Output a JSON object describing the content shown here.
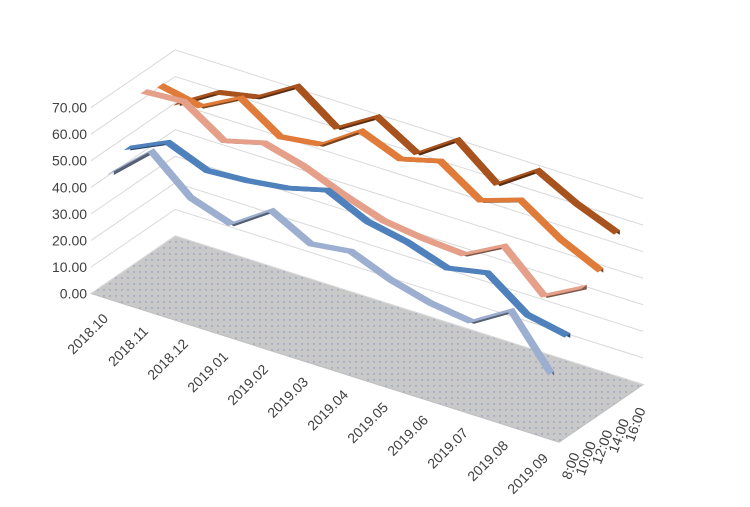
{
  "chart_data": {
    "type": "line",
    "variant": "3d-line",
    "title": "",
    "xlabel": "",
    "ylabel": "",
    "ylim": [
      0,
      70
    ],
    "yticks": [
      "0.00",
      "10.00",
      "20.00",
      "30.00",
      "40.00",
      "50.00",
      "60.00",
      "70.00"
    ],
    "categories": [
      "2018.10",
      "2018.11",
      "2018.12",
      "2019.01",
      "2019.02",
      "2019.03",
      "2019.04",
      "2019.05",
      "2019.06",
      "2019.07",
      "2019.08",
      "2019.09"
    ],
    "legend": "none",
    "grid": true,
    "series": [
      {
        "name": "8:00",
        "color": "#9dafd0",
        "values": [
          45,
          58,
          45,
          40,
          50,
          42,
          44,
          38,
          34,
          32,
          41,
          22
        ]
      },
      {
        "name": "10:00",
        "color": "#4f81bd",
        "values": [
          50,
          57,
          51,
          52,
          54,
          58,
          51,
          48,
          43,
          46,
          35,
          32
        ]
      },
      {
        "name": "12:00",
        "color": "#e6a08a",
        "values": [
          67,
          68,
          58,
          62,
          58,
          52,
          47,
          45,
          44,
          52,
          38,
          46
        ]
      },
      {
        "name": "14:00",
        "color": "#e07b39",
        "values": [
          65,
          62,
          70,
          60,
          62,
          72,
          66,
          70,
          60,
          65,
          55,
          48
        ]
      },
      {
        "name": "16:00",
        "color": "#a8521e",
        "values": [
          54,
          63,
          66,
          75,
          64,
          73,
          64,
          74,
          62,
          72,
          64,
          58
        ]
      }
    ]
  }
}
